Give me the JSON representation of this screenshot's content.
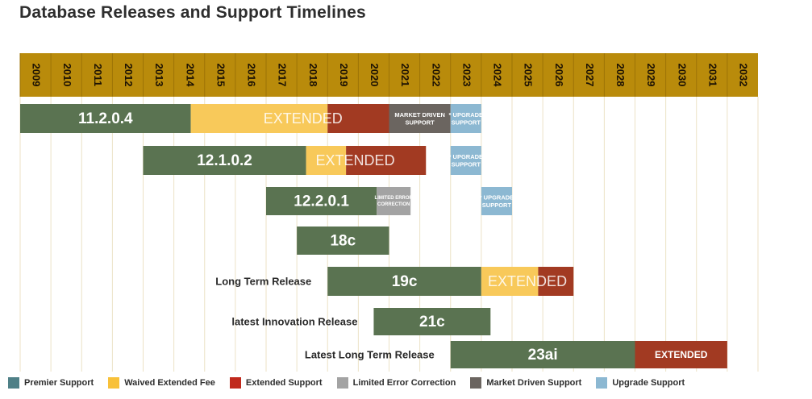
{
  "page": {
    "title": "Database Releases and Support Timelines"
  },
  "colors": {
    "header": "#b98b0b",
    "premier": "#5a7351",
    "waived": "#f8c95a",
    "extended": "#a23a22",
    "limited": "#a3a3a3",
    "market": "#6b6560",
    "upgrade": "#8cb8d2",
    "grid": "#ece2c6"
  },
  "chart_data": {
    "type": "gantt",
    "title": "Database Releases and Support Timelines",
    "x_categories": [
      "2009",
      "2010",
      "2011",
      "2012",
      "2013",
      "2014",
      "2015",
      "2016",
      "2017",
      "2018",
      "2019",
      "2020",
      "2021",
      "2022",
      "2023",
      "2024",
      "2025",
      "2026",
      "2027",
      "2028",
      "2029",
      "2030",
      "2031",
      "2032"
    ],
    "rows": [
      {
        "release": "11.2.0.4",
        "row_label": "",
        "segments": [
          {
            "kind": "premier",
            "start": 2009.0,
            "end": 2014.55,
            "label": "11.2.0.4"
          },
          {
            "kind": "waived",
            "start": 2014.55,
            "end": 2019.0,
            "label": ""
          },
          {
            "kind": "extended",
            "start": 2019.0,
            "end": 2021.0,
            "label": ""
          },
          {
            "kind": "market",
            "start": 2021.0,
            "end": 2023.0,
            "label": "MARKET DRIVEN SUPPORT"
          },
          {
            "kind": "upgrade",
            "start": 2023.0,
            "end": 2024.0,
            "label": "* UPGRADE SUPPORT"
          }
        ],
        "overlay_label": "EXTENDED",
        "overlay_at": 2018.2
      },
      {
        "release": "12.1.0.2",
        "row_label": "",
        "segments": [
          {
            "kind": "premier",
            "start": 2013.0,
            "end": 2018.3,
            "label": "12.1.0.2"
          },
          {
            "kind": "waived",
            "start": 2018.3,
            "end": 2019.6,
            "label": ""
          },
          {
            "kind": "extended",
            "start": 2019.6,
            "end": 2022.2,
            "label": ""
          },
          {
            "kind": "upgrade",
            "start": 2023.0,
            "end": 2024.0,
            "label": "* UPGRADE SUPPORT"
          }
        ],
        "overlay_label": "EXTENDED",
        "overlay_at": 2019.9
      },
      {
        "release": "12.2.0.1",
        "row_label": "",
        "segments": [
          {
            "kind": "premier",
            "start": 2017.0,
            "end": 2020.6,
            "label": "12.2.0.1"
          },
          {
            "kind": "limited",
            "start": 2020.6,
            "end": 2021.7,
            "label": "LIMITED ERROR CORRECTION"
          },
          {
            "kind": "upgrade",
            "start": 2024.0,
            "end": 2025.0,
            "label": "* UPGRADE SUPPORT"
          }
        ],
        "overlay_label": "",
        "overlay_at": 0
      },
      {
        "release": "18c",
        "row_label": "",
        "segments": [
          {
            "kind": "premier",
            "start": 2018.0,
            "end": 2021.0,
            "label": "18c"
          }
        ],
        "overlay_label": "",
        "overlay_at": 0
      },
      {
        "release": "19c",
        "row_label": "Long Term Release",
        "segments": [
          {
            "kind": "premier",
            "start": 2019.0,
            "end": 2024.0,
            "label": "19c"
          },
          {
            "kind": "waived",
            "start": 2024.0,
            "end": 2025.85,
            "label": ""
          },
          {
            "kind": "extended",
            "start": 2025.85,
            "end": 2027.0,
            "label": ""
          }
        ],
        "overlay_label": "EXTENDED",
        "overlay_at": 2025.5
      },
      {
        "release": "21c",
        "row_label": "latest Innovation Release",
        "segments": [
          {
            "kind": "premier",
            "start": 2020.5,
            "end": 2024.3,
            "label": "21c"
          }
        ],
        "overlay_label": "",
        "overlay_at": 0
      },
      {
        "release": "23ai",
        "row_label": "Latest Long Term Release",
        "segments": [
          {
            "kind": "premier",
            "start": 2023.0,
            "end": 2029.0,
            "label": "23ai"
          },
          {
            "kind": "extended",
            "start": 2029.0,
            "end": 2032.0,
            "label": "EXTENDED"
          }
        ],
        "overlay_label": "",
        "overlay_at": 0
      }
    ],
    "legend": [
      {
        "key": "premier",
        "label": "Premier Support",
        "color": "#4f8087"
      },
      {
        "key": "waived",
        "label": "Waived Extended Fee",
        "color": "#f8c13a"
      },
      {
        "key": "extended",
        "label": "Extended Support",
        "color": "#c0291c"
      },
      {
        "key": "limited",
        "label": "Limited Error Correction",
        "color": "#a3a3a3"
      },
      {
        "key": "market",
        "label": "Market Driven Support",
        "color": "#6b6560"
      },
      {
        "key": "upgrade",
        "label": "Upgrade Support",
        "color": "#8cb8d2"
      }
    ]
  }
}
